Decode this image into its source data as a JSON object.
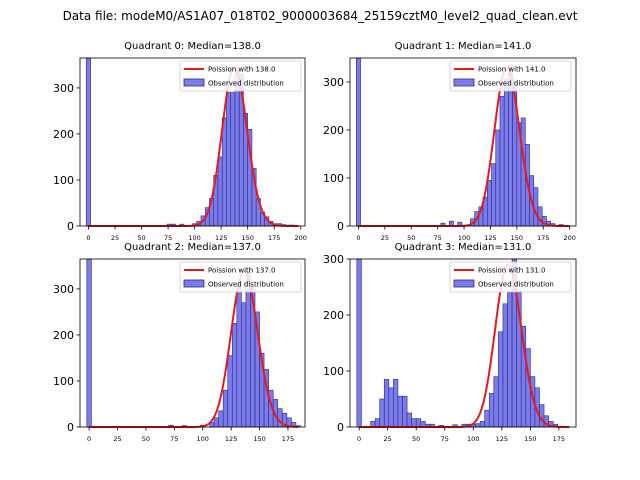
{
  "figure": {
    "suptitle": "Data file: modeM0/AS1A07_018T02_9000003684_25159cztM0_level2_quad_clean.evt"
  },
  "colors": {
    "bar_fill": "#7b7bea",
    "bar_edge": "#2a2a8a",
    "curve": "#e41a1c"
  },
  "chart_data": [
    {
      "type": "bar",
      "title": "Quadrant 0: Median=138.0",
      "legend": [
        "Poission with 138.0",
        "Observed distribution"
      ],
      "legend_loc": "top-right",
      "xlim": [
        -8,
        204
      ],
      "ylim": [
        0,
        365
      ],
      "xticks": [
        0,
        25,
        50,
        75,
        100,
        125,
        150,
        175,
        200
      ],
      "yticks": [
        0,
        100,
        200,
        300
      ],
      "bin_width": 4,
      "bins": [
        [
          -2,
          365
        ],
        [
          74,
          4
        ],
        [
          78,
          4
        ],
        [
          86,
          4
        ],
        [
          98,
          5
        ],
        [
          102,
          10
        ],
        [
          106,
          22
        ],
        [
          110,
          40
        ],
        [
          114,
          60
        ],
        [
          118,
          110
        ],
        [
          122,
          150
        ],
        [
          126,
          235
        ],
        [
          130,
          290
        ],
        [
          134,
          290
        ],
        [
          138,
          340
        ],
        [
          142,
          330
        ],
        [
          146,
          245
        ],
        [
          150,
          210
        ],
        [
          154,
          125
        ],
        [
          158,
          60
        ],
        [
          162,
          30
        ],
        [
          166,
          20
        ],
        [
          170,
          10
        ],
        [
          174,
          5
        ],
        [
          178,
          5
        ],
        [
          182,
          3
        ],
        [
          186,
          2
        ],
        [
          190,
          2
        ]
      ],
      "poisson_mean": 138.0,
      "poisson_peak": 345
    },
    {
      "type": "bar",
      "title": "Quadrant 1: Median=141.0",
      "legend": [
        "Poission with 141.0",
        "Observed distribution"
      ],
      "legend_loc": "top-right",
      "xlim": [
        -8,
        206
      ],
      "ylim": [
        0,
        350
      ],
      "xticks": [
        0,
        25,
        50,
        75,
        100,
        125,
        150,
        175,
        200
      ],
      "yticks": [
        0,
        100,
        200,
        300
      ],
      "bin_width": 4,
      "bins": [
        [
          -2,
          350
        ],
        [
          78,
          6
        ],
        [
          86,
          10
        ],
        [
          94,
          8
        ],
        [
          106,
          15
        ],
        [
          110,
          30
        ],
        [
          114,
          40
        ],
        [
          118,
          60
        ],
        [
          122,
          95
        ],
        [
          126,
          130
        ],
        [
          130,
          200
        ],
        [
          134,
          270
        ],
        [
          138,
          305
        ],
        [
          142,
          335
        ],
        [
          146,
          305
        ],
        [
          150,
          215
        ],
        [
          154,
          225
        ],
        [
          158,
          170
        ],
        [
          162,
          105
        ],
        [
          166,
          80
        ],
        [
          170,
          40
        ],
        [
          174,
          20
        ],
        [
          178,
          10
        ],
        [
          182,
          5
        ],
        [
          190,
          3
        ]
      ],
      "poisson_mean": 141.0,
      "poisson_peak": 330
    },
    {
      "type": "bar",
      "title": "Quadrant 2: Median=137.0",
      "legend": [
        "Poission with 137.0",
        "Observed distribution"
      ],
      "legend_loc": "top-right",
      "xlim": [
        -8,
        190
      ],
      "ylim": [
        0,
        365
      ],
      "xticks": [
        0,
        25,
        50,
        75,
        100,
        125,
        150,
        175
      ],
      "yticks": [
        0,
        100,
        200,
        300
      ],
      "bin_width": 4,
      "bins": [
        [
          -2,
          365
        ],
        [
          70,
          4
        ],
        [
          82,
          3
        ],
        [
          98,
          4
        ],
        [
          106,
          10
        ],
        [
          110,
          20
        ],
        [
          114,
          35
        ],
        [
          118,
          80
        ],
        [
          122,
          155
        ],
        [
          126,
          225
        ],
        [
          130,
          305
        ],
        [
          134,
          270
        ],
        [
          138,
          340
        ],
        [
          142,
          305
        ],
        [
          146,
          250
        ],
        [
          150,
          160
        ],
        [
          154,
          125
        ],
        [
          158,
          80
        ],
        [
          162,
          60
        ],
        [
          166,
          40
        ],
        [
          170,
          30
        ],
        [
          174,
          20
        ],
        [
          178,
          10
        ],
        [
          182,
          3
        ]
      ],
      "poisson_mean": 137.0,
      "poisson_peak": 338
    },
    {
      "type": "bar",
      "title": "Quadrant 3: Median=131.0",
      "legend": [
        "Poission with 131.0",
        "Observed distribution"
      ],
      "legend_loc": "top-right",
      "xlim": [
        -8,
        190
      ],
      "ylim": [
        0,
        300
      ],
      "xticks": [
        0,
        25,
        50,
        75,
        100,
        125,
        150,
        175
      ],
      "yticks": [
        0,
        100,
        200,
        300
      ],
      "bin_width": 4,
      "bins": [
        [
          -2,
          300
        ],
        [
          10,
          10
        ],
        [
          14,
          15
        ],
        [
          18,
          50
        ],
        [
          22,
          85
        ],
        [
          26,
          70
        ],
        [
          30,
          85
        ],
        [
          34,
          55
        ],
        [
          38,
          55
        ],
        [
          42,
          25
        ],
        [
          46,
          15
        ],
        [
          50,
          15
        ],
        [
          54,
          10
        ],
        [
          58,
          5
        ],
        [
          62,
          5
        ],
        [
          70,
          3
        ],
        [
          82,
          4
        ],
        [
          90,
          5
        ],
        [
          94,
          5
        ],
        [
          98,
          5
        ],
        [
          102,
          6
        ],
        [
          106,
          10
        ],
        [
          110,
          30
        ],
        [
          114,
          60
        ],
        [
          118,
          90
        ],
        [
          122,
          170
        ],
        [
          126,
          220
        ],
        [
          130,
          240
        ],
        [
          134,
          300
        ],
        [
          138,
          240
        ],
        [
          142,
          180
        ],
        [
          146,
          140
        ],
        [
          150,
          90
        ],
        [
          154,
          70
        ],
        [
          158,
          40
        ],
        [
          162,
          20
        ],
        [
          166,
          10
        ],
        [
          170,
          5
        ]
      ],
      "poisson_mean": 131.0,
      "poisson_peak": 290
    }
  ]
}
